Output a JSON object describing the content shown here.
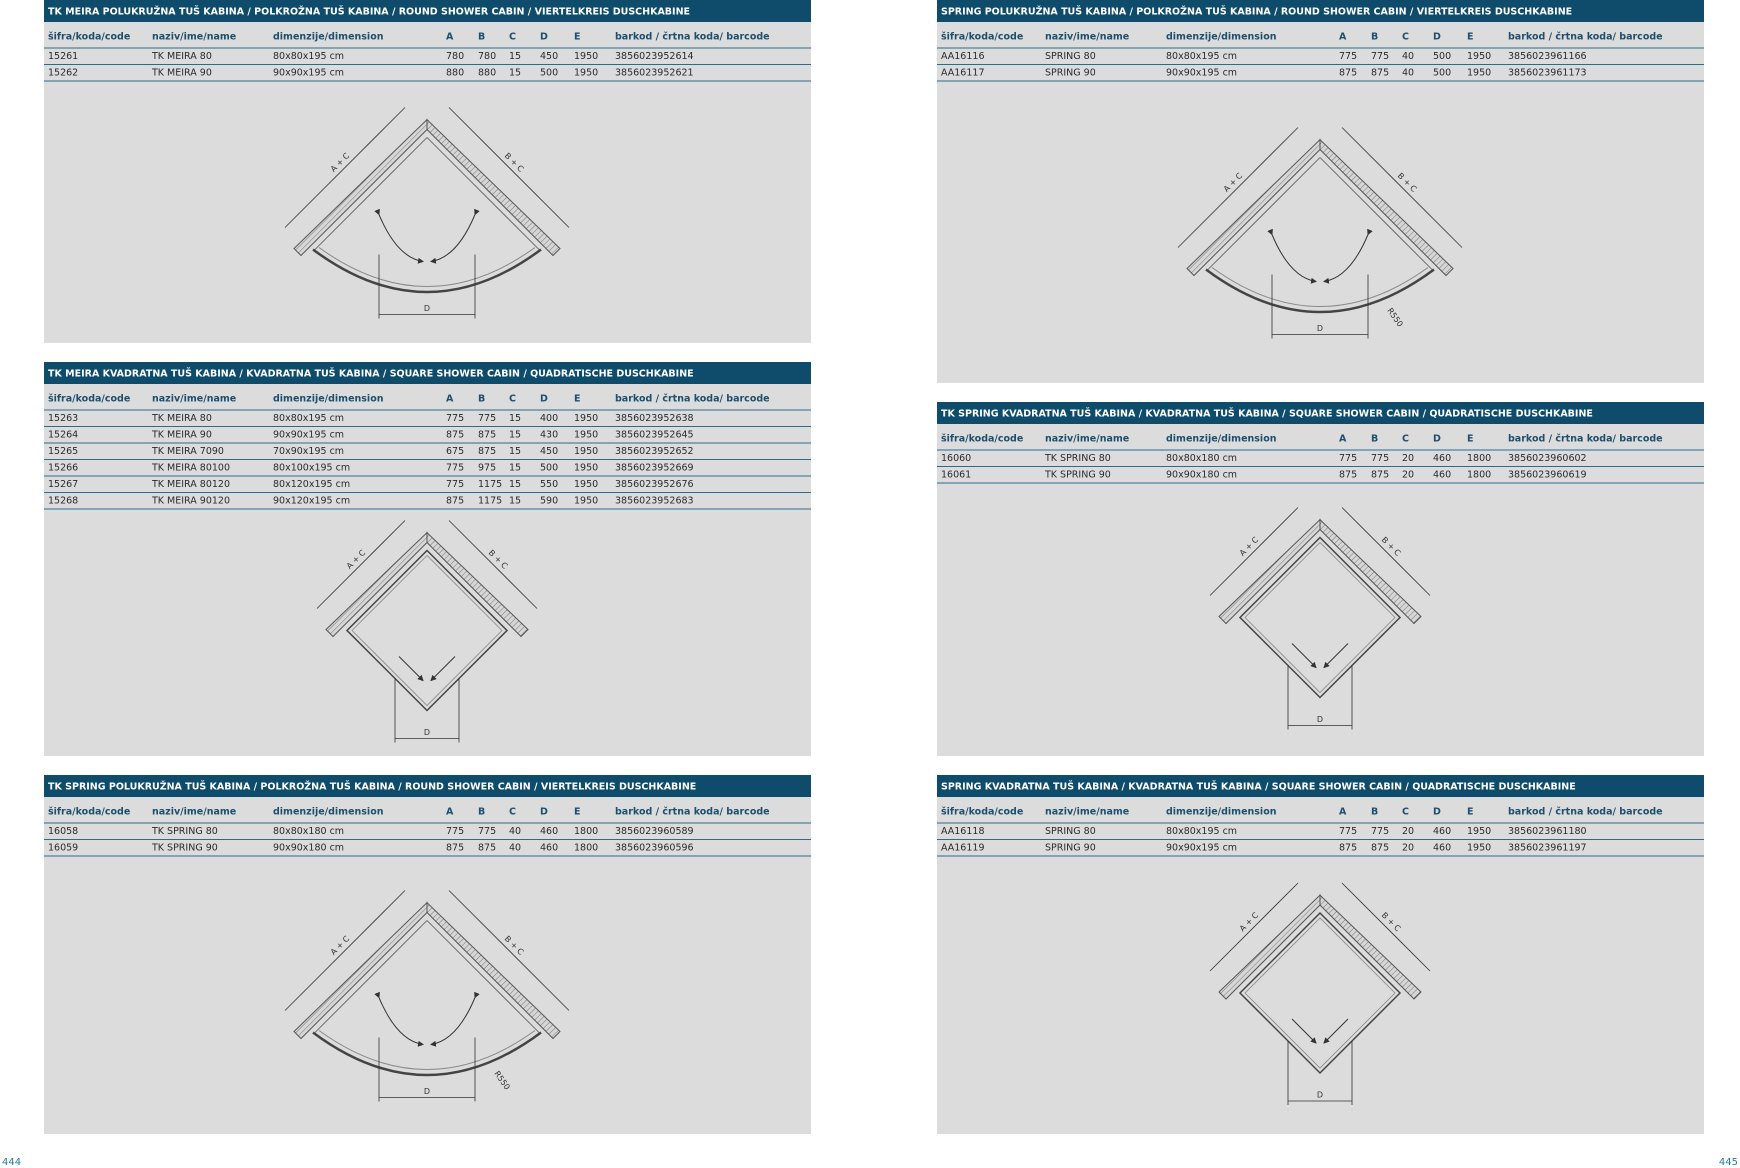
{
  "pages": [
    {
      "number": "444",
      "sections": [
        {
          "title": "TK MEIRA POLUKRUŽNA TUŠ KABINA / POLKROŽNA TUŠ KABINA / ROUND SHOWER CABIN / VIERTELKREIS DUSCHKABINE",
          "columns": [
            "šifra/koda/code",
            "naziv/ime/name",
            "dimenzije/dimension",
            "A",
            "B",
            "C",
            "D",
            "E",
            "barkod / črtna koda/ barcode"
          ],
          "rows": [
            [
              "15261",
              "TK MEIRA 80",
              "80x80x195 cm",
              "780",
              "780",
              "15",
              "450",
              "1950",
              "3856023952614"
            ],
            [
              "15262",
              "TK MEIRA 90",
              "90x90x195 cm",
              "880",
              "880",
              "15",
              "500",
              "1950",
              "3856023952621"
            ]
          ],
          "diagram": {
            "shape": "round",
            "labels": [
              "A + C",
              "B + C",
              "D"
            ]
          }
        },
        {
          "title": "TK MEIRA KVADRATNA TUŠ KABINA / KVADRATNA TUŠ KABINA / SQUARE SHOWER CABIN / QUADRATISCHE DUSCHKABINE",
          "columns": [
            "šifra/koda/code",
            "naziv/ime/name",
            "dimenzije/dimension",
            "A",
            "B",
            "C",
            "D",
            "E",
            "barkod / črtna koda/ barcode"
          ],
          "rows": [
            [
              "15263",
              "TK MEIRA 80",
              "80x80x195 cm",
              "775",
              "775",
              "15",
              "400",
              "1950",
              "3856023952638"
            ],
            [
              "15264",
              "TK MEIRA 90",
              "90x90x195 cm",
              "875",
              "875",
              "15",
              "430",
              "1950",
              "3856023952645"
            ],
            [
              "15265",
              "TK MEIRA 7090",
              "70x90x195 cm",
              "675",
              "875",
              "15",
              "450",
              "1950",
              "3856023952652"
            ],
            [
              "15266",
              "TK MEIRA 80100",
              "80x100x195 cm",
              "775",
              "975",
              "15",
              "500",
              "1950",
              "3856023952669"
            ],
            [
              "15267",
              "TK MEIRA 80120",
              "80x120x195 cm",
              "775",
              "1175",
              "15",
              "550",
              "1950",
              "3856023952676"
            ],
            [
              "15268",
              "TK MEIRA 90120",
              "90x120x195 cm",
              "875",
              "1175",
              "15",
              "590",
              "1950",
              "3856023952683"
            ]
          ],
          "diagram": {
            "shape": "square",
            "labels": [
              "A + C",
              "B + C",
              "D"
            ]
          }
        },
        {
          "title": "TK SPRING POLUKRUŽNA TUŠ KABINA / POLKROŽNA TUŠ KABINA / ROUND SHOWER CABIN / VIERTELKREIS DUSCHKABINE",
          "columns": [
            "šifra/koda/code",
            "naziv/ime/name",
            "dimenzije/dimension",
            "A",
            "B",
            "C",
            "D",
            "E",
            "barkod / črtna koda/ barcode"
          ],
          "rows": [
            [
              "16058",
              "TK SPRING 80",
              "80x80x180 cm",
              "775",
              "775",
              "40",
              "460",
              "1800",
              "3856023960589"
            ],
            [
              "16059",
              "TK SPRING 90",
              "90x90x180 cm",
              "875",
              "875",
              "40",
              "460",
              "1800",
              "3856023960596"
            ]
          ],
          "diagram": {
            "shape": "round",
            "labels": [
              "A + C",
              "B + C",
              "D",
              "R550"
            ]
          }
        }
      ]
    },
    {
      "number": "445",
      "sections": [
        {
          "title": "SPRING POLUKRUŽNA TUŠ KABINA / POLKROŽNA TUŠ KABINA / ROUND SHOWER CABIN / VIERTELKREIS DUSCHKABINE",
          "columns": [
            "šifra/koda/code",
            "naziv/ime/name",
            "dimenzije/dimension",
            "A",
            "B",
            "C",
            "D",
            "E",
            "barkod / črtna koda/ barcode"
          ],
          "rows": [
            [
              "AA16116",
              "SPRING 80",
              "80x80x195 cm",
              "775",
              "775",
              "40",
              "500",
              "1950",
              "3856023961166"
            ],
            [
              "AA16117",
              "SPRING 90",
              "90x90x195 cm",
              "875",
              "875",
              "40",
              "500",
              "1950",
              "3856023961173"
            ]
          ],
          "diagram": {
            "shape": "round",
            "labels": [
              "A + C",
              "B + C",
              "D",
              "R550"
            ]
          }
        },
        {
          "title": "TK SPRING KVADRATNA TUŠ KABINA / KVADRATNA TUŠ KABINA / SQUARE SHOWER CABIN / QUADRATISCHE DUSCHKABINE",
          "columns": [
            "šifra/koda/code",
            "naziv/ime/name",
            "dimenzije/dimension",
            "A",
            "B",
            "C",
            "D",
            "E",
            "barkod / črtna koda/ barcode"
          ],
          "rows": [
            [
              "16060",
              "TK SPRING 80",
              "80x80x180 cm",
              "775",
              "775",
              "20",
              "460",
              "1800",
              "3856023960602"
            ],
            [
              "16061",
              "TK SPRING 90",
              "90x90x180 cm",
              "875",
              "875",
              "20",
              "460",
              "1800",
              "3856023960619"
            ]
          ],
          "diagram": {
            "shape": "square",
            "labels": [
              "A + C",
              "B + C",
              "D"
            ]
          }
        },
        {
          "title": "SPRING KVADRATNA TUŠ KABINA / KVADRATNA TUŠ KABINA / SQUARE SHOWER CABIN / QUADRATISCHE DUSCHKABINE",
          "columns": [
            "šifra/koda/code",
            "naziv/ime/name",
            "dimenzije/dimension",
            "A",
            "B",
            "C",
            "D",
            "E",
            "barkod / črtna koda/ barcode"
          ],
          "rows": [
            [
              "AA16118",
              "SPRING 80",
              "80x80x195 cm",
              "775",
              "775",
              "20",
              "460",
              "1950",
              "3856023961180"
            ],
            [
              "AA16119",
              "SPRING 90",
              "90x90x195 cm",
              "875",
              "875",
              "20",
              "460",
              "1950",
              "3856023961197"
            ]
          ],
          "diagram": {
            "shape": "square",
            "labels": [
              "A + C",
              "B + C",
              "D"
            ]
          }
        }
      ]
    }
  ]
}
